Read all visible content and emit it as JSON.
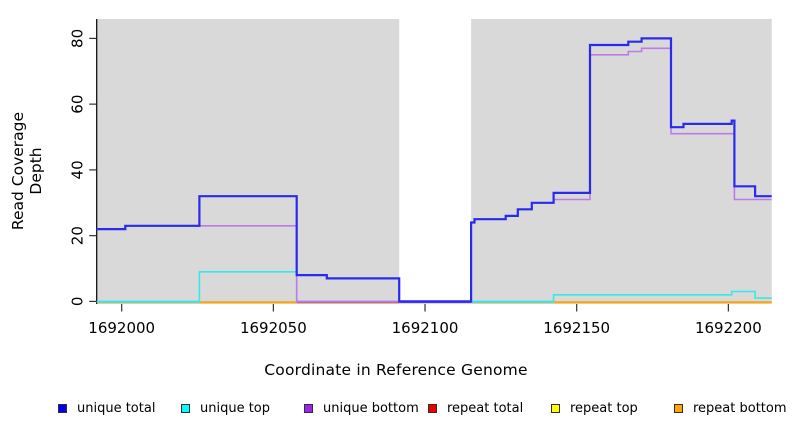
{
  "chart_data": {
    "type": "line",
    "subtype": "step-coverage",
    "title": "",
    "xlabel": "Coordinate in Reference Genome",
    "ylabel": "Read Coverage Depth",
    "x_ticks": [
      1692000,
      1692050,
      1692100,
      1692150,
      1692200
    ],
    "y_ticks": [
      0,
      20,
      40,
      60,
      80
    ],
    "xlim": [
      1691991.8,
      1692214.3
    ],
    "ylim": [
      0,
      86
    ],
    "grid": false,
    "plot_bg": "#ffffff",
    "shaded_regions": [
      {
        "x0": 1691991.8,
        "x1": 1692091.5,
        "color": "#d9d9d9"
      },
      {
        "x0": 1692115.2,
        "x1": 1692214.3,
        "color": "#d9d9d9"
      }
    ],
    "series": [
      {
        "name": "unique top",
        "color": "#38e8e8",
        "width": 1.6,
        "steps": [
          [
            1691991.8,
            0
          ],
          [
            1692025.6,
            9
          ],
          [
            1692057.7,
            0
          ],
          [
            1692142.4,
            2
          ],
          [
            1692201.1,
            3
          ],
          [
            1692208.8,
            1
          ]
        ],
        "end": 1692214.3
      },
      {
        "name": "unique bottom",
        "color": "#bd7bea",
        "width": 1.6,
        "steps": [
          [
            1691991.8,
            22
          ],
          [
            1692001.2,
            23
          ],
          [
            1692057.7,
            0
          ],
          [
            1692115.2,
            24
          ],
          [
            1692116.3,
            25
          ],
          [
            1692126.6,
            26
          ],
          [
            1692130.6,
            28
          ],
          [
            1692135.2,
            30
          ],
          [
            1692142.4,
            31
          ],
          [
            1692154.4,
            75
          ],
          [
            1692167.0,
            76
          ],
          [
            1692171.4,
            77
          ],
          [
            1692181.1,
            51
          ],
          [
            1692202.0,
            31
          ]
        ],
        "end": 1692214.3
      },
      {
        "name": "unique total",
        "color": "#2a2aee",
        "width": 2.2,
        "steps": [
          [
            1691991.8,
            22
          ],
          [
            1692001.2,
            23
          ],
          [
            1692025.6,
            32
          ],
          [
            1692057.7,
            8
          ],
          [
            1692067.6,
            7
          ],
          [
            1692091.5,
            0
          ],
          [
            1692115.2,
            24
          ],
          [
            1692116.3,
            25
          ],
          [
            1692126.6,
            26
          ],
          [
            1692130.6,
            28
          ],
          [
            1692135.2,
            30
          ],
          [
            1692142.4,
            33
          ],
          [
            1692154.4,
            78
          ],
          [
            1692167.0,
            79
          ],
          [
            1692171.4,
            80
          ],
          [
            1692181.1,
            53
          ],
          [
            1692185.2,
            54
          ],
          [
            1692201.1,
            55
          ],
          [
            1692202.0,
            35
          ],
          [
            1692208.8,
            32
          ]
        ],
        "end": 1692214.3
      }
    ],
    "baseline_segments": [
      {
        "x0": 1691991.8,
        "x1": 1692025.6,
        "color": "#8fc98f"
      },
      {
        "x0": 1692025.6,
        "x1": 1692057.7,
        "color": "#ffa500"
      },
      {
        "x0": 1692057.7,
        "x1": 1692091.5,
        "color": "#e34b4b"
      },
      {
        "x0": 1692091.5,
        "x1": 1692115.2,
        "color": "#5b4bee"
      },
      {
        "x0": 1692115.2,
        "x1": 1692142.4,
        "color": "#8fc98f"
      },
      {
        "x0": 1692142.4,
        "x1": 1692214.3,
        "color": "#ffa500"
      }
    ],
    "legend": [
      {
        "label": "unique total",
        "color": "#0000ee"
      },
      {
        "label": "unique top",
        "color": "#00ffff"
      },
      {
        "label": "unique bottom",
        "color": "#a020f0"
      },
      {
        "label": "repeat total",
        "color": "#ee0000"
      },
      {
        "label": "repeat top",
        "color": "#ffff00"
      },
      {
        "label": "repeat bottom",
        "color": "#ffa500"
      }
    ],
    "legend_position": "bottom"
  }
}
